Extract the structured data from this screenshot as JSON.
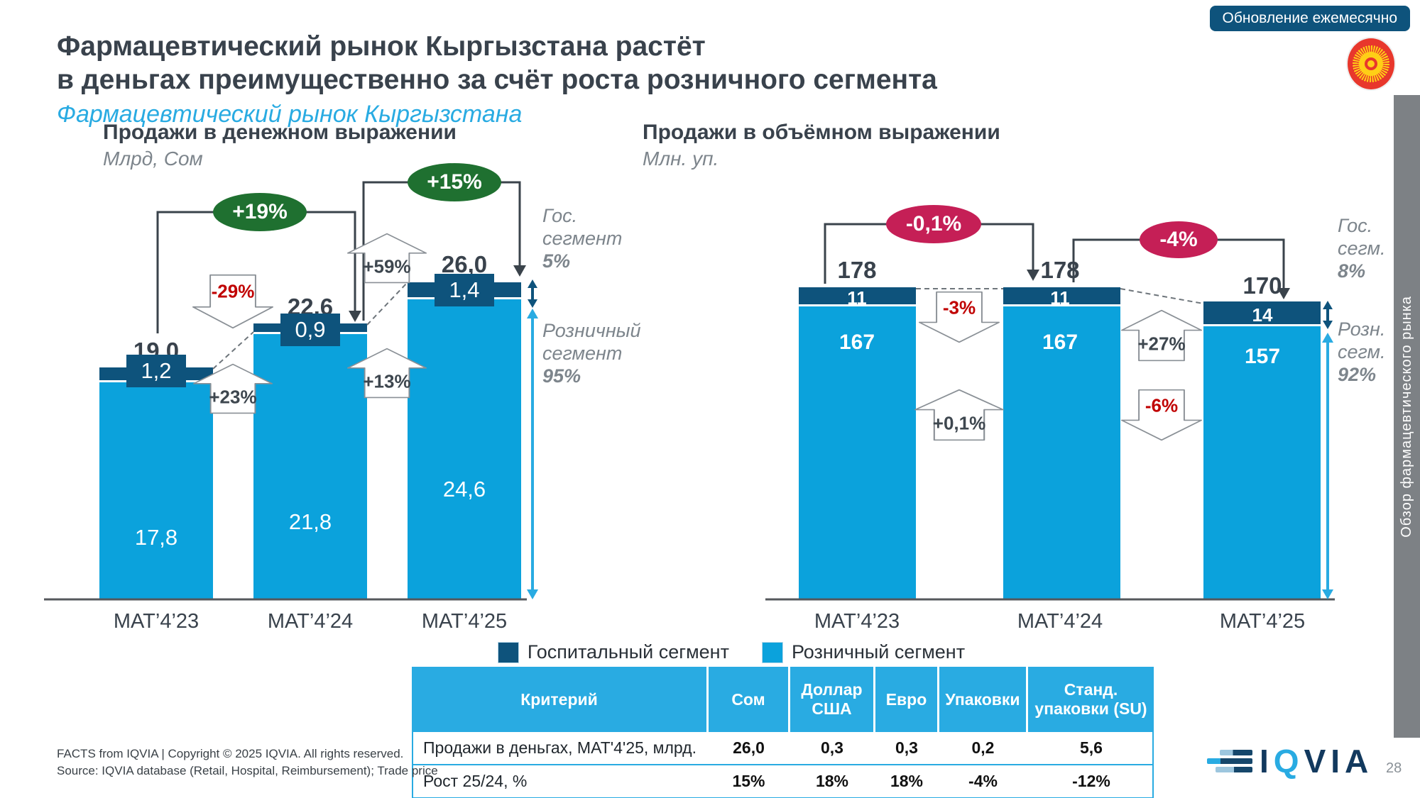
{
  "page": {
    "update_badge": "Обновление ежемесячно",
    "page_number": "28"
  },
  "header": {
    "title_line1": "Фармацевтический рынок Кыргызстана растёт",
    "title_line2": "в деньгах преимущественно за счёт роста розничного сегмента",
    "subtitle": "Фармацевтический рынок Кыргызстана"
  },
  "side_tab": {
    "label": "Обзор фармацевтического рынка"
  },
  "colors": {
    "hospital": "#0E537C",
    "retail": "#0BA2DC",
    "accent_blue": "#29ABE2",
    "growth_positive_oval": "#1F7030",
    "growth_negative_oval": "#C51F56",
    "negative_text": "#C00000",
    "title_text": "#39424C",
    "gray_text": "#7D858C"
  },
  "chart_data": [
    {
      "type": "bar",
      "stacked": true,
      "title": "Продажи в денежном выражении",
      "subtitle": "Млрд, Сом",
      "ylabel": "Млрд, Сом",
      "categories": [
        "MAT’4’23",
        "MAT’4’24",
        "MAT’4’25"
      ],
      "series": [
        {
          "name": "Госпитальный сегмент",
          "values": [
            1.2,
            0.9,
            1.4
          ],
          "labels": [
            "1,2",
            "0,9",
            "1,4"
          ],
          "color": "#0E537C"
        },
        {
          "name": "Розничный сегмент",
          "values": [
            17.8,
            21.8,
            24.6
          ],
          "labels": [
            "17,8",
            "21,8",
            "24,6"
          ],
          "color": "#0BA2DC"
        }
      ],
      "totals": [
        19.0,
        22.6,
        26.0
      ],
      "total_labels": [
        "19,0",
        "22,6",
        "26,0"
      ],
      "growth_ovals": [
        {
          "label": "+19%",
          "between": "MAT’4’23→MAT’4’24",
          "color": "#1F7030"
        },
        {
          "label": "+15%",
          "between": "MAT’4’24→MAT’4’25",
          "color": "#1F7030"
        }
      ],
      "change_arrows": [
        {
          "label": "-29%",
          "segment": "Госпитальный",
          "between": "MAT’4’23→MAT’4’24",
          "direction": "down"
        },
        {
          "label": "+23%",
          "segment": "Розничный",
          "between": "MAT’4’23→MAT’4’24",
          "direction": "up"
        },
        {
          "label": "+59%",
          "segment": "Госпитальный",
          "between": "MAT’4’24→MAT’4’25",
          "direction": "up"
        },
        {
          "label": "+13%",
          "segment": "Розничный",
          "between": "MAT’4’24→MAT’4’25",
          "direction": "up"
        }
      ],
      "right_annotation": {
        "gov_line1": "Гос.",
        "gov_line2": "сегмент",
        "gov_pct": "5%",
        "retail_line1": "Розничный",
        "retail_line2": "сегмент",
        "retail_pct": "95%"
      }
    },
    {
      "type": "bar",
      "stacked": true,
      "title": "Продажи в объёмном выражении",
      "subtitle": "Млн. уп.",
      "ylabel": "Млн. уп.",
      "categories": [
        "MAT’4’23",
        "MAT’4’24",
        "MAT’4’25"
      ],
      "series": [
        {
          "name": "Госпитальный сегмент",
          "values": [
            11,
            11,
            14
          ],
          "labels": [
            "11",
            "11",
            "14"
          ],
          "color": "#0E537C"
        },
        {
          "name": "Розничный сегмент",
          "values": [
            167,
            167,
            157
          ],
          "labels": [
            "167",
            "167",
            "157"
          ],
          "color": "#0BA2DC"
        }
      ],
      "totals": [
        178,
        178,
        170
      ],
      "total_labels": [
        "178",
        "178",
        "170"
      ],
      "growth_ovals": [
        {
          "label": "-0,1%",
          "between": "MAT’4’23→MAT’4’24",
          "color": "#C51F56"
        },
        {
          "label": "-4%",
          "between": "MAT’4’24→MAT’4’25",
          "color": "#C51F56"
        }
      ],
      "change_arrows": [
        {
          "label": "-3%",
          "segment": "Госпитальный",
          "between": "MAT’4’23→MAT’4’24",
          "direction": "down"
        },
        {
          "label": "+0,1%",
          "segment": "Розничный",
          "between": "MAT’4’23→MAT’4’24",
          "direction": "up"
        },
        {
          "label": "+27%",
          "segment": "Госпитальный",
          "between": "MAT’4’24→MAT’4’25",
          "direction": "up"
        },
        {
          "label": "-6%",
          "segment": "Розничный",
          "between": "MAT’4’24→MAT’4’25",
          "direction": "down"
        }
      ],
      "right_annotation": {
        "gov_line1": "Гос.",
        "gov_line2": "сегм.",
        "gov_pct": "8%",
        "retail_line1": "Розн.",
        "retail_line2": "сегм.",
        "retail_pct": "92%"
      }
    }
  ],
  "legend": [
    {
      "label": "Госпитальный сегмент",
      "color": "#0E537C"
    },
    {
      "label": "Розничный сегмент",
      "color": "#0BA2DC"
    }
  ],
  "table": {
    "headers": [
      "Критерий",
      "Сом",
      "Доллар США",
      "Евро",
      "Упаковки",
      "Станд. упаковки (SU)"
    ],
    "rows": [
      {
        "label": "Продажи в деньгах, MAT'4'25, млрд.",
        "values": [
          "26,0",
          "0,3",
          "0,3",
          "0,2",
          "5,6"
        ]
      },
      {
        "label": "Рост 25/24, %",
        "values": [
          "15%",
          "18%",
          "18%",
          "-4%",
          "-12%"
        ]
      }
    ]
  },
  "footer": {
    "line1": "FACTS from IQVIA | Copyright © 2025 IQVIA. All rights reserved.",
    "line2": "Source: IQVIA database (Retail, Hospital, Reimbursement); Trade price"
  },
  "logo": {
    "text_i": "I",
    "text_q": "Q",
    "text_via": "VIA"
  }
}
